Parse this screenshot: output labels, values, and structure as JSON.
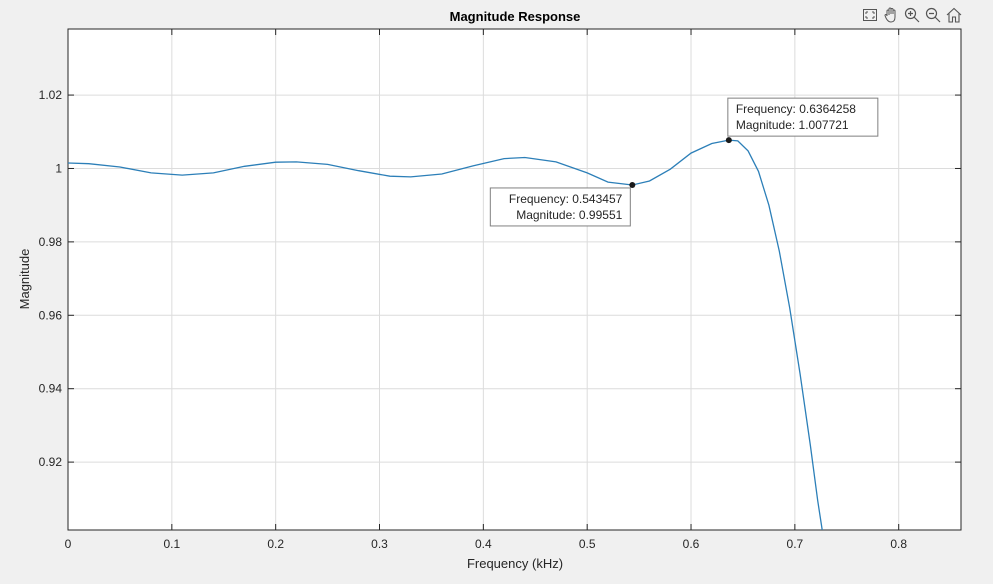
{
  "toolbar": {
    "icons": [
      "export-icon",
      "pan-hand-icon",
      "zoom-in-icon",
      "zoom-out-icon",
      "home-icon"
    ]
  },
  "chart_data": {
    "type": "line",
    "title": "Magnitude Response",
    "xlabel": "Frequency (kHz)",
    "ylabel": "Magnitude",
    "xlim": [
      0,
      0.86
    ],
    "ylim": [
      0.9015,
      1.038
    ],
    "xticks": [
      0,
      0.1,
      0.2,
      0.3,
      0.4,
      0.5,
      0.6,
      0.7,
      0.8
    ],
    "xtick_labels": [
      "0",
      "0.1",
      "0.2",
      "0.3",
      "0.4",
      "0.5",
      "0.6",
      "0.7",
      "0.8"
    ],
    "yticks": [
      0.92,
      0.94,
      0.96,
      0.98,
      1.0,
      1.02
    ],
    "ytick_labels": [
      "0.92",
      "0.94",
      "0.96",
      "0.98",
      "1",
      "1.02"
    ],
    "grid": true,
    "line_color": "#2c7fb8",
    "series": [
      {
        "x": [
          0,
          0.02,
          0.05,
          0.08,
          0.11,
          0.14,
          0.17,
          0.2,
          0.22,
          0.25,
          0.28,
          0.31,
          0.33,
          0.36,
          0.39,
          0.42,
          0.44,
          0.47,
          0.5,
          0.52,
          0.543457,
          0.56,
          0.58,
          0.6,
          0.62,
          0.6364258,
          0.645,
          0.655,
          0.665,
          0.675,
          0.685,
          0.695,
          0.705,
          0.715,
          0.722,
          0.728
        ],
        "y": [
          1.0015,
          1.0013,
          1.0004,
          0.9988,
          0.9982,
          0.9988,
          1.0006,
          1.0017,
          1.0018,
          1.0011,
          0.9994,
          0.9979,
          0.9977,
          0.9985,
          1.0007,
          1.0027,
          1.003,
          1.0018,
          0.9988,
          0.9963,
          0.99551,
          0.9966,
          0.9998,
          1.0042,
          1.0068,
          1.007721,
          1.0075,
          1.0048,
          0.9992,
          0.99,
          0.9775,
          0.962,
          0.944,
          0.9245,
          0.9095,
          0.8985
        ]
      }
    ],
    "datatips": [
      {
        "x": 0.6364258,
        "y": 1.007721,
        "line1": "Frequency: 0.6364258",
        "line2": "Magnitude: 1.007721"
      },
      {
        "x": 0.543457,
        "y": 0.99551,
        "line1": "Frequency: 0.543457",
        "line2": "Magnitude: 0.99551"
      }
    ]
  }
}
